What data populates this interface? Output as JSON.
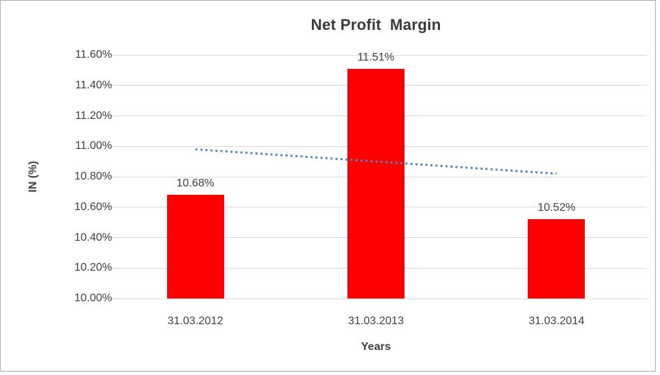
{
  "chart_data": {
    "type": "bar",
    "title": "Net Profit  Margin",
    "xlabel": "Years",
    "ylabel": "IN (%)",
    "categories": [
      "31.03.2012",
      "31.03.2013",
      "31.03.2014"
    ],
    "values": [
      10.68,
      11.51,
      10.52
    ],
    "data_labels": [
      "10.68%",
      "11.51%",
      "10.52%"
    ],
    "ylim": [
      10.0,
      11.6
    ],
    "ytick_step": 0.2,
    "yticks_top_to_bottom": [
      "11.60%",
      "11.40%",
      "11.20%",
      "11.00%",
      "10.80%",
      "10.60%",
      "10.40%",
      "10.20%",
      "10.00%"
    ],
    "grid": true,
    "legend": "none",
    "bar_color": "#ff0000",
    "gridline_color": "#d9d9d9",
    "text_color": "#404040",
    "frame_border_color": "#ababab",
    "trendline": {
      "type": "linear",
      "style": "dotted",
      "color": "#4e86c4",
      "start_value": 10.98,
      "end_value": 10.82
    }
  }
}
